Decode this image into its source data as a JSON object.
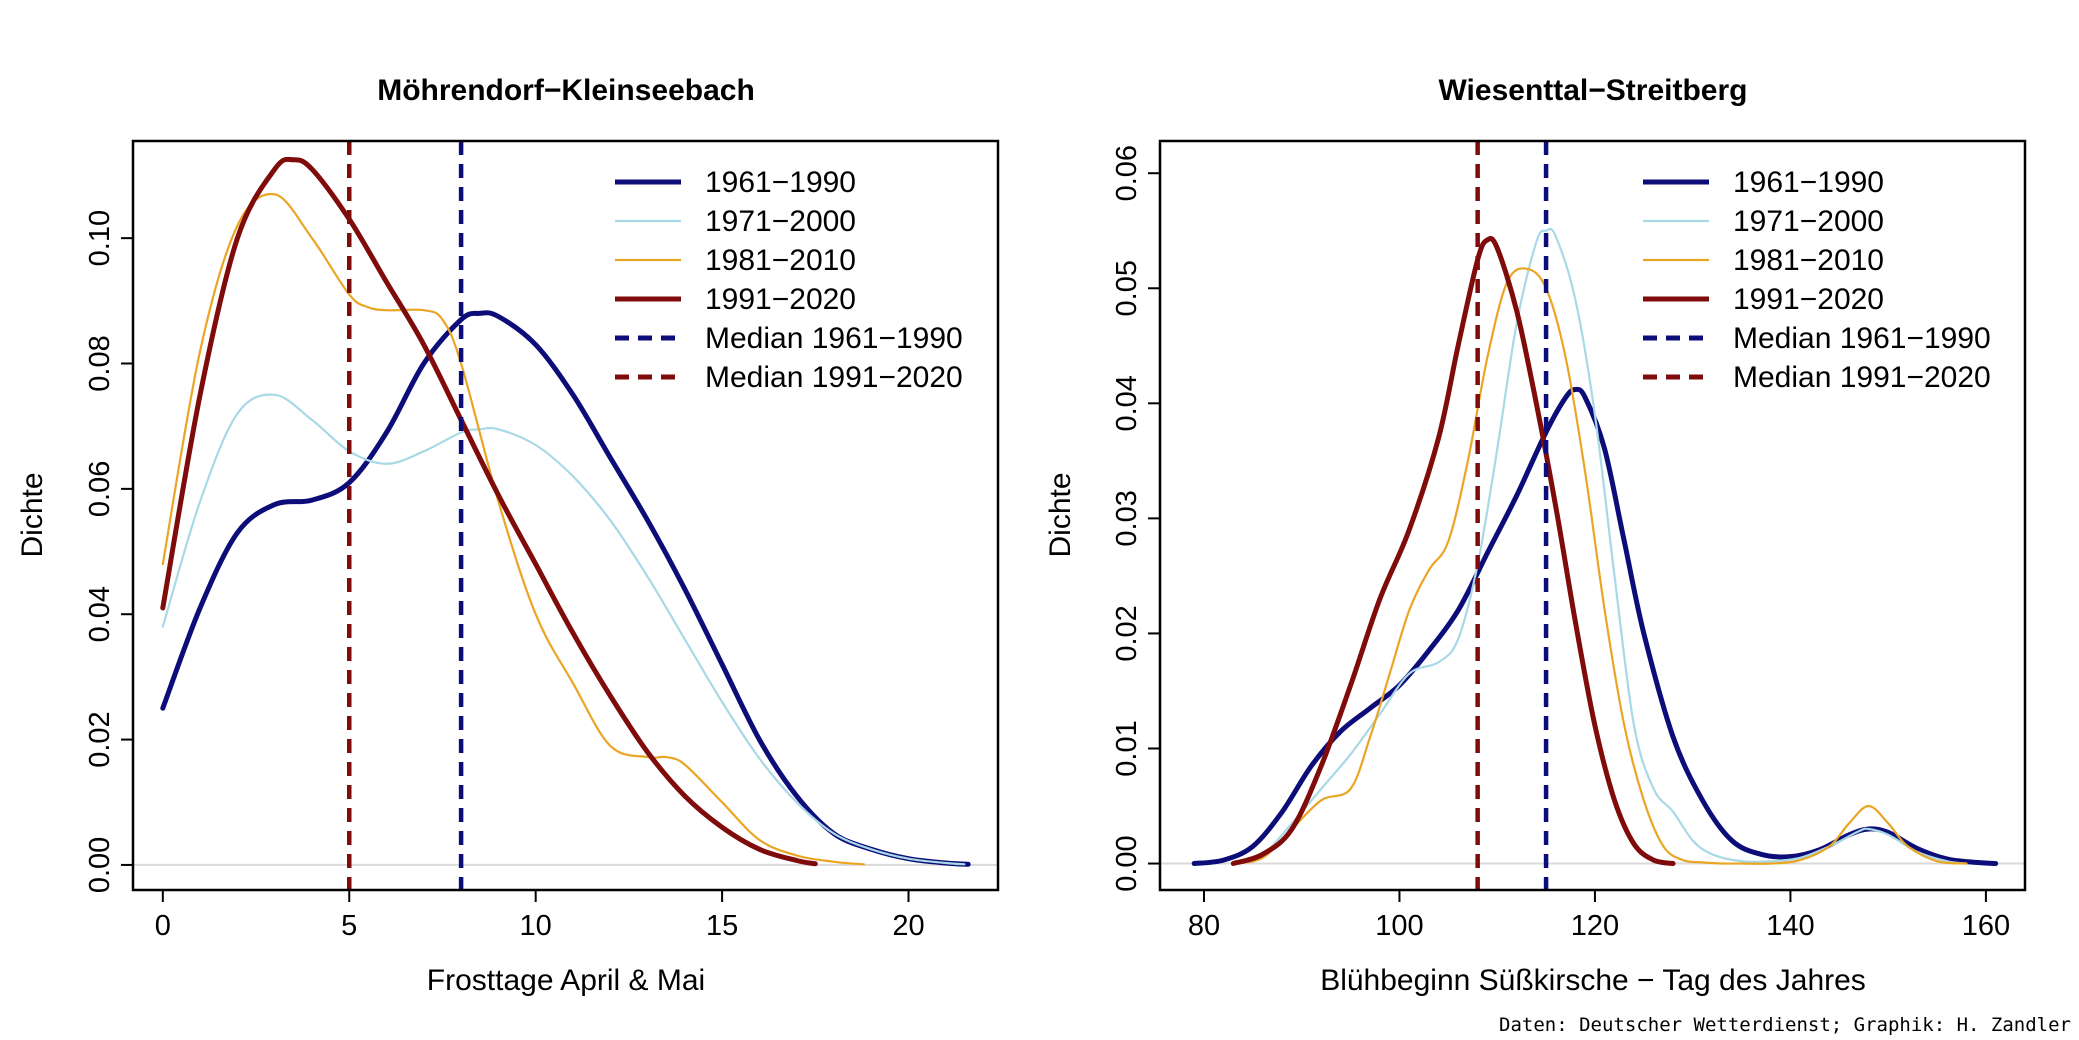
{
  "caption": "Daten: Deutscher Wetterdienst; Graphik: H. Zandler",
  "colors": {
    "c1961": "#0d0d7a",
    "c1971": "#a9d8e6",
    "c1981": "#eba524",
    "c1991": "#7f0b0b",
    "zero_line": "#d9d9d9"
  },
  "chart_data": [
    {
      "type": "line",
      "title": "Möhrendorf−Kleinseebach",
      "xlabel": "Frosttage April & Mai",
      "ylabel": "Dichte",
      "xlim": [
        -0.8,
        22.4
      ],
      "ylim": [
        -0.004,
        0.1155
      ],
      "xticks": [
        0,
        5,
        10,
        15,
        20
      ],
      "yticks": [
        0.0,
        0.02,
        0.04,
        0.06,
        0.08,
        0.1
      ],
      "ytick_labels": [
        "0.00",
        "0.02",
        "0.04",
        "0.06",
        "0.08",
        "0.10"
      ],
      "legend": [
        {
          "label": "1961−1990",
          "color_key": "c1961",
          "style": "solid",
          "weight": "thick"
        },
        {
          "label": "1971−2000",
          "color_key": "c1971",
          "style": "solid",
          "weight": "thin"
        },
        {
          "label": "1981−2010",
          "color_key": "c1981",
          "style": "solid",
          "weight": "thin"
        },
        {
          "label": "1991−2020",
          "color_key": "c1991",
          "style": "solid",
          "weight": "thick"
        },
        {
          "label": "Median 1961−1990",
          "color_key": "c1961",
          "style": "dashed",
          "weight": "thick"
        },
        {
          "label": "Median 1991−2020",
          "color_key": "c1991",
          "style": "dashed",
          "weight": "thick"
        }
      ],
      "medians": [
        {
          "name": "Median 1961−1990",
          "x": 8,
          "color_key": "c1961"
        },
        {
          "name": "Median 1991−2020",
          "x": 5,
          "color_key": "c1991"
        }
      ],
      "series": [
        {
          "name": "1961−1990",
          "color_key": "c1961",
          "weight": "thick",
          "x": [
            0,
            1,
            2,
            3,
            4,
            5,
            6,
            7,
            8,
            8.5,
            9,
            10,
            11,
            12,
            13,
            14,
            15,
            16,
            17,
            18,
            19,
            20,
            21,
            21.6
          ],
          "y": [
            0.025,
            0.041,
            0.053,
            0.0575,
            0.0582,
            0.061,
            0.069,
            0.08,
            0.087,
            0.088,
            0.0875,
            0.083,
            0.075,
            0.065,
            0.055,
            0.044,
            0.032,
            0.02,
            0.011,
            0.005,
            0.0025,
            0.001,
            0.0003,
            0.0001
          ]
        },
        {
          "name": "1971−2000",
          "color_key": "c1971",
          "weight": "thin",
          "x": [
            0,
            1,
            2,
            3,
            4,
            5,
            6,
            7,
            8,
            8.5,
            9,
            10,
            11,
            12,
            13,
            14,
            15,
            16,
            17,
            18,
            19,
            20,
            21,
            21.5
          ],
          "y": [
            0.038,
            0.058,
            0.072,
            0.075,
            0.071,
            0.066,
            0.064,
            0.066,
            0.069,
            0.0695,
            0.0695,
            0.067,
            0.062,
            0.055,
            0.046,
            0.036,
            0.026,
            0.017,
            0.01,
            0.005,
            0.0025,
            0.001,
            0.0003,
            0.0001
          ]
        },
        {
          "name": "1981−2010",
          "color_key": "c1981",
          "weight": "thin",
          "x": [
            0,
            1,
            2,
            3,
            4,
            5,
            5.5,
            6,
            7,
            7.5,
            8,
            9,
            10,
            11,
            12,
            13,
            13.5,
            14,
            15,
            16,
            17,
            18,
            18.8
          ],
          "y": [
            0.048,
            0.082,
            0.102,
            0.107,
            0.1,
            0.091,
            0.089,
            0.0885,
            0.0885,
            0.087,
            0.08,
            0.058,
            0.04,
            0.029,
            0.019,
            0.0172,
            0.0172,
            0.016,
            0.01,
            0.004,
            0.0015,
            0.0005,
            0.0001
          ]
        },
        {
          "name": "1991−2020",
          "color_key": "c1991",
          "weight": "thick",
          "x": [
            0,
            1,
            2,
            3,
            3.5,
            4,
            5,
            6,
            7,
            8,
            9,
            10,
            11,
            12,
            13,
            14,
            15,
            16,
            17,
            17.5
          ],
          "y": [
            0.041,
            0.075,
            0.1,
            0.111,
            0.1125,
            0.111,
            0.103,
            0.093,
            0.083,
            0.071,
            0.059,
            0.048,
            0.037,
            0.027,
            0.018,
            0.011,
            0.006,
            0.0025,
            0.0007,
            0.0002
          ]
        }
      ]
    },
    {
      "type": "line",
      "title": "Wiesenttal−Streitberg",
      "xlabel": "Blühbeginn Süßkirsche − Tag des Jahres",
      "ylabel": "Dichte",
      "xlim": [
        75.5,
        164
      ],
      "ylim": [
        -0.0023,
        0.0628
      ],
      "xticks": [
        80,
        100,
        120,
        140,
        160
      ],
      "yticks": [
        0.0,
        0.01,
        0.02,
        0.03,
        0.04,
        0.05,
        0.06
      ],
      "ytick_labels": [
        "0.00",
        "0.01",
        "0.02",
        "0.03",
        "0.04",
        "0.05",
        "0.06"
      ],
      "legend": [
        {
          "label": "1961−1990",
          "color_key": "c1961",
          "style": "solid",
          "weight": "thick"
        },
        {
          "label": "1971−2000",
          "color_key": "c1971",
          "style": "solid",
          "weight": "thin"
        },
        {
          "label": "1981−2010",
          "color_key": "c1981",
          "style": "solid",
          "weight": "thin"
        },
        {
          "label": "1991−2020",
          "color_key": "c1991",
          "style": "solid",
          "weight": "thick"
        },
        {
          "label": "Median 1961−1990",
          "color_key": "c1961",
          "style": "dashed",
          "weight": "thick"
        },
        {
          "label": "Median 1991−2020",
          "color_key": "c1991",
          "style": "dashed",
          "weight": "thick"
        }
      ],
      "medians": [
        {
          "name": "Median 1961−1990",
          "x": 115,
          "color_key": "c1961"
        },
        {
          "name": "Median 1991−2020",
          "x": 108,
          "color_key": "c1991"
        }
      ],
      "series": [
        {
          "name": "1961−1990",
          "color_key": "c1961",
          "weight": "thick",
          "x": [
            79,
            82,
            85,
            88,
            91,
            94,
            97,
            100,
            103,
            106,
            109,
            112,
            115,
            117,
            118,
            119,
            121,
            123,
            125,
            128,
            131,
            134,
            137,
            140,
            143,
            146,
            148,
            150,
            153,
            156,
            159,
            161
          ],
          "y": [
            0,
            0.0003,
            0.0015,
            0.0045,
            0.0085,
            0.0115,
            0.0135,
            0.0155,
            0.0185,
            0.022,
            0.027,
            0.032,
            0.0375,
            0.0405,
            0.0412,
            0.0405,
            0.036,
            0.028,
            0.02,
            0.011,
            0.0055,
            0.002,
            0.0008,
            0.0006,
            0.0012,
            0.0025,
            0.003,
            0.0027,
            0.0013,
            0.0004,
            0.0001,
            0
          ]
        },
        {
          "name": "1971−2000",
          "color_key": "c1971",
          "weight": "thin",
          "x": [
            83,
            86,
            89,
            92,
            95,
            98,
            101,
            104,
            106,
            108,
            110,
            112,
            114,
            115,
            116,
            118,
            120,
            122,
            124,
            126,
            128,
            130,
            132,
            135,
            138,
            141,
            144,
            147,
            148,
            150,
            153,
            156,
            158
          ],
          "y": [
            0,
            0.0008,
            0.0035,
            0.0065,
            0.0095,
            0.013,
            0.0165,
            0.0175,
            0.0195,
            0.026,
            0.036,
            0.047,
            0.054,
            0.055,
            0.0545,
            0.049,
            0.039,
            0.025,
            0.012,
            0.0065,
            0.0045,
            0.002,
            0.0008,
            0.0002,
            0.0002,
            0.0005,
            0.0015,
            0.0028,
            0.003,
            0.0025,
            0.001,
            0.0002,
            0
          ]
        },
        {
          "name": "1981−2010",
          "color_key": "c1981",
          "weight": "thin",
          "x": [
            83,
            86,
            89,
            92,
            95,
            97,
            99,
            101,
            103,
            105,
            107,
            109,
            111,
            113,
            115,
            117,
            119,
            121,
            123,
            125,
            127,
            129,
            131,
            133,
            135,
            138,
            141,
            144,
            146,
            148,
            150,
            152,
            155,
            158
          ],
          "y": [
            0,
            0.0005,
            0.003,
            0.0055,
            0.0065,
            0.011,
            0.0165,
            0.022,
            0.0255,
            0.028,
            0.035,
            0.044,
            0.0505,
            0.0517,
            0.05,
            0.044,
            0.034,
            0.022,
            0.012,
            0.0055,
            0.0015,
            0.0003,
            0.0001,
            0,
            0,
            0,
            0.0003,
            0.0015,
            0.0035,
            0.005,
            0.0035,
            0.0015,
            0.0002,
            0
          ]
        },
        {
          "name": "1991−2020",
          "color_key": "c1991",
          "weight": "thick",
          "x": [
            83,
            86,
            89,
            92,
            95,
            98,
            101,
            104,
            106,
            108,
            109,
            110,
            112,
            114,
            116,
            118,
            120,
            122,
            124,
            126,
            128
          ],
          "y": [
            0,
            0.0008,
            0.003,
            0.0085,
            0.0155,
            0.023,
            0.029,
            0.037,
            0.045,
            0.0525,
            0.0542,
            0.0535,
            0.048,
            0.04,
            0.031,
            0.021,
            0.012,
            0.0055,
            0.0017,
            0.0003,
            0
          ]
        }
      ]
    }
  ]
}
